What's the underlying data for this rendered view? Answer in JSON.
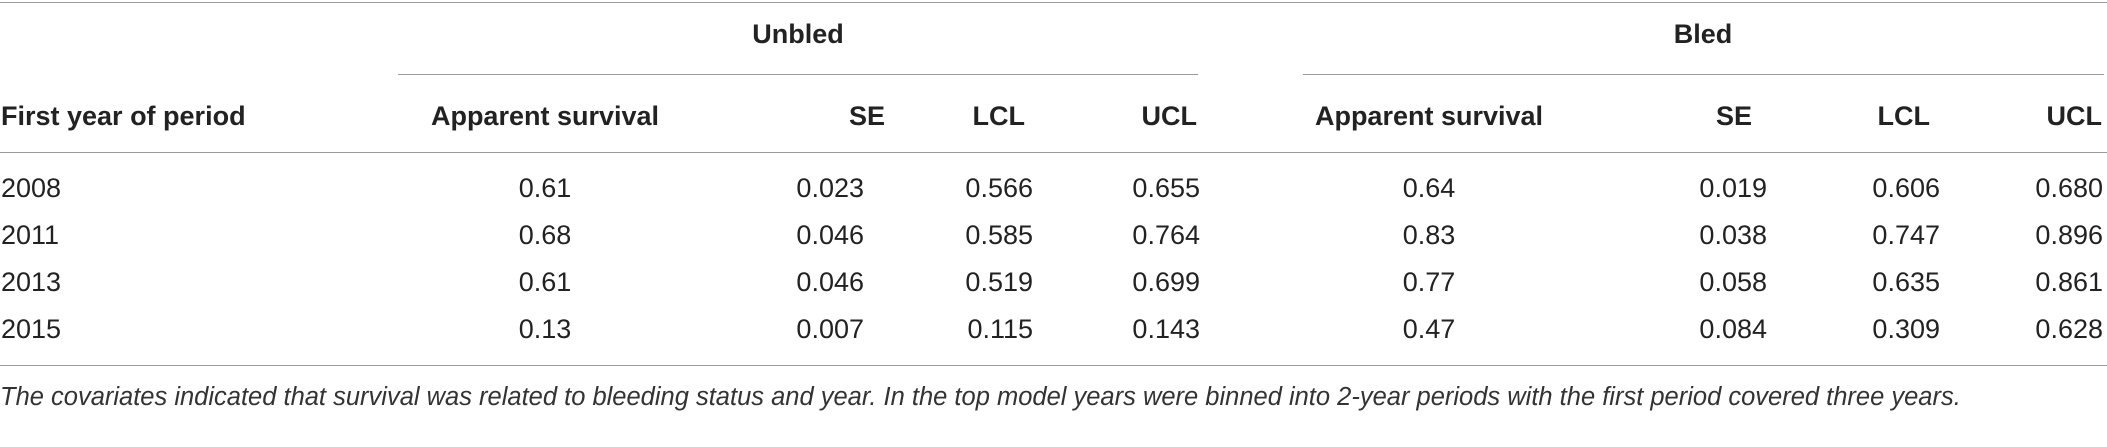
{
  "table": {
    "groups": [
      "Unbled",
      "Bled"
    ],
    "row_header": "First year of period",
    "columns": [
      "Apparent survival",
      "SE",
      "LCL",
      "UCL",
      "Apparent survival",
      "SE",
      "LCL",
      "UCL"
    ],
    "rows": [
      {
        "year": "2008",
        "values": [
          "0.61",
          "0.023",
          "0.566",
          "0.655",
          "0.64",
          "0.019",
          "0.606",
          "0.680"
        ]
      },
      {
        "year": "2011",
        "values": [
          "0.68",
          "0.046",
          "0.585",
          "0.764",
          "0.83",
          "0.038",
          "0.747",
          "0.896"
        ]
      },
      {
        "year": "2013",
        "values": [
          "0.61",
          "0.046",
          "0.519",
          "0.699",
          "0.77",
          "0.058",
          "0.635",
          "0.861"
        ]
      },
      {
        "year": "2015",
        "values": [
          "0.13",
          "0.007",
          "0.115",
          "0.143",
          "0.47",
          "0.084",
          "0.309",
          "0.628"
        ]
      }
    ],
    "footnote": "The covariates indicated that survival was related to bleeding status and year. In the top model years were binned into 2-year periods with the first period covered three years."
  }
}
